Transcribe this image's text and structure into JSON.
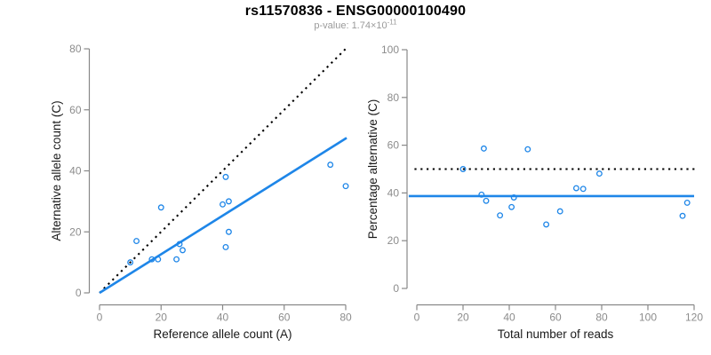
{
  "header": {
    "title": "rs11570836 - ENSG00000100490",
    "p_value_label": "p-value: 1.74×10",
    "p_value_exponent": "-11"
  },
  "colors": {
    "blue": "#1E86E8",
    "black": "#000000",
    "axis": "#888888",
    "tick_label": "#8C8C8C",
    "axis_title": "#1A1A1A"
  },
  "chart_data": [
    {
      "name": "allele-counts-scatter",
      "type": "scatter",
      "title": "",
      "xlabel": "Reference allele count (A)",
      "ylabel": "Alternative allele count (C)",
      "xlim": [
        0,
        80
      ],
      "ylim": [
        0,
        80
      ],
      "xticks": [
        0,
        20,
        40,
        60,
        80
      ],
      "yticks": [
        0,
        20,
        40,
        60,
        80
      ],
      "grid": false,
      "points": [
        [
          10,
          10
        ],
        [
          12,
          17
        ],
        [
          17,
          11
        ],
        [
          19,
          11
        ],
        [
          20,
          28
        ],
        [
          25,
          11
        ],
        [
          26,
          16
        ],
        [
          27,
          14
        ],
        [
          40,
          29
        ],
        [
          41,
          38
        ],
        [
          41,
          15
        ],
        [
          42,
          30
        ],
        [
          42,
          20
        ],
        [
          75,
          42
        ],
        [
          80,
          35
        ]
      ],
      "lines": [
        {
          "name": "identity-line",
          "style": "dotted",
          "color": "black",
          "x1": 0,
          "y1": 0,
          "x2": 80,
          "y2": 80
        },
        {
          "name": "regression-line",
          "style": "solid",
          "color": "blue",
          "x1": 0,
          "y1": 0,
          "x2": 80.3,
          "y2": 50.8
        }
      ]
    },
    {
      "name": "percentage-vs-reads-scatter",
      "type": "scatter",
      "title": "",
      "xlabel": "Total number of reads",
      "ylabel": "Percentage alternative (C)",
      "xlim": [
        0,
        120
      ],
      "ylim": [
        0,
        100
      ],
      "xticks": [
        0,
        20,
        40,
        60,
        80,
        100,
        120
      ],
      "yticks": [
        0,
        20,
        40,
        60,
        80,
        100
      ],
      "grid": false,
      "points": [
        [
          20,
          50
        ],
        [
          29,
          58.6
        ],
        [
          28,
          39.3
        ],
        [
          30,
          36.7
        ],
        [
          48,
          58.3
        ],
        [
          36,
          30.6
        ],
        [
          42,
          38.1
        ],
        [
          41,
          34.1
        ],
        [
          69,
          42
        ],
        [
          79,
          48.1
        ],
        [
          56,
          26.8
        ],
        [
          72,
          41.7
        ],
        [
          62,
          32.3
        ],
        [
          117,
          35.9
        ],
        [
          115,
          30.4
        ]
      ],
      "lines": [
        {
          "name": "fifty-percent-line",
          "style": "dotted",
          "color": "black",
          "x1": -1,
          "y1": 50,
          "x2": 121,
          "y2": 50
        },
        {
          "name": "overall-percentage-line",
          "style": "solid",
          "color": "blue",
          "x1": -3.5,
          "y1": 38.7,
          "x2": 120,
          "y2": 38.7
        }
      ]
    }
  ]
}
